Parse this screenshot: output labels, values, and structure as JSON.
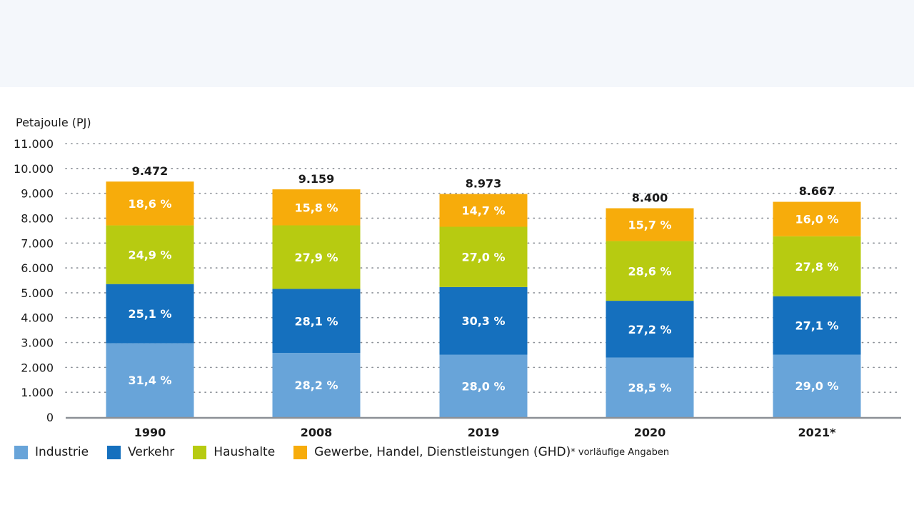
{
  "chart_data": {
    "type": "bar",
    "stacked": true,
    "title": "",
    "ylabel": "Petajoule (PJ)",
    "xlabel": "",
    "ylim": [
      0,
      11000
    ],
    "yticks": [
      0,
      1000,
      2000,
      3000,
      4000,
      5000,
      6000,
      7000,
      8000,
      9000,
      10000,
      11000
    ],
    "ytick_labels": [
      "0",
      "1.000",
      "2.000",
      "3.000",
      "4.000",
      "5.000",
      "6.000",
      "7.000",
      "8.000",
      "9.000",
      "10.000",
      "11.000"
    ],
    "grid": true,
    "categories": [
      "1990",
      "2008",
      "2019",
      "2020",
      "2021*"
    ],
    "totals": [
      9472,
      9159,
      8973,
      8400,
      8667
    ],
    "total_labels": [
      "9.472",
      "9.159",
      "8.973",
      "8.400",
      "8.667"
    ],
    "series": [
      {
        "name": "Industrie",
        "color": "#68a4d9",
        "share_percent": [
          31.4,
          28.2,
          28.0,
          28.5,
          29.0
        ],
        "labels": [
          "31,4 %",
          "28,2 %",
          "28,0 %",
          "28,5 %",
          "29,0 %"
        ]
      },
      {
        "name": "Verkehr",
        "color": "#1570be",
        "share_percent": [
          25.1,
          28.1,
          30.3,
          27.2,
          27.1
        ],
        "labels": [
          "25,1 %",
          "28,1 %",
          "30,3 %",
          "27,2 %",
          "27,1 %"
        ]
      },
      {
        "name": "Haushalte",
        "color": "#b7cb11",
        "share_percent": [
          24.9,
          27.9,
          27.0,
          28.6,
          27.8
        ],
        "labels": [
          "24,9 %",
          "27,9 %",
          "27,0 %",
          "28,6 %",
          "27,8 %"
        ]
      },
      {
        "name": "Gewerbe, Handel, Dienstleistungen (GHD)",
        "color": "#f7ac0b",
        "share_percent": [
          18.6,
          15.8,
          14.7,
          15.7,
          16.0
        ],
        "labels": [
          "18,6 %",
          "15,8 %",
          "14,7 %",
          "15,7 %",
          "16,0 %"
        ]
      }
    ],
    "legend_position": "bottom-left",
    "footnote": "* vorläufige Angaben"
  },
  "legend": {
    "items": [
      {
        "label": "Industrie",
        "color": "#68a4d9"
      },
      {
        "label": "Verkehr",
        "color": "#1570be"
      },
      {
        "label": "Haushalte",
        "color": "#b7cb11"
      },
      {
        "label": "Gewerbe, Handel, Dienstleistungen (GHD)",
        "color": "#f7ac0b"
      }
    ],
    "note": "* vorläufige Angaben"
  },
  "colors": {
    "top_band": "#f4f7fb",
    "grid_dots": "#8a8f96",
    "baseline": "#8c9096",
    "text": "#1a1a1a"
  }
}
